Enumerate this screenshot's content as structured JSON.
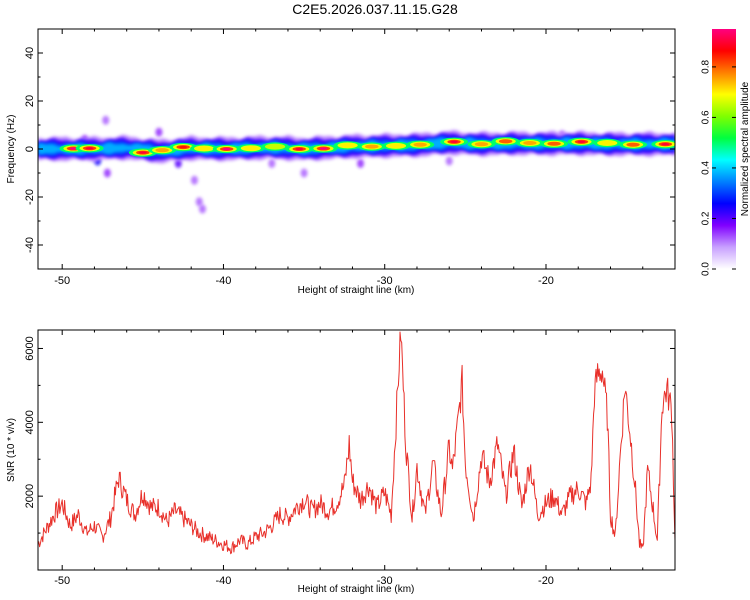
{
  "figure": {
    "title": "C2E5.2026.037.11.15.G28"
  },
  "chart_data": [
    {
      "type": "heatmap",
      "title": "",
      "xlabel": "Height of straight line (km)",
      "ylabel": "Frequency (Hz)",
      "xlim": [
        -51.5,
        -12.0
      ],
      "ylim": [
        -50,
        50
      ],
      "x_ticks": [
        -50,
        -40,
        -30,
        -20
      ],
      "x_tick_labels": [
        "-50",
        "-40",
        "-30",
        "-20"
      ],
      "y_ticks": [
        -40,
        -20,
        0,
        20,
        40
      ],
      "y_tick_labels": [
        "-40",
        "-20",
        "0",
        "20",
        "40"
      ],
      "colorbar": {
        "label": "Normalized spectral amplitude",
        "range": [
          0,
          0.95
        ],
        "ticks": [
          0,
          0.2,
          0.4,
          0.6,
          0.8
        ],
        "tick_labels": [
          "0.0",
          "0.2",
          "0.4",
          "0.6",
          "0.8"
        ],
        "colormap": [
          "#ffffff",
          "#c8a0ff",
          "#8000ff",
          "#0000ff",
          "#0080ff",
          "#00ffff",
          "#00ff40",
          "#80ff00",
          "#ffff00",
          "#ff8000",
          "#ff0000",
          "#ff0080"
        ]
      },
      "ridge": {
        "x": [
          -51.5,
          -48,
          -46,
          -44,
          -42,
          -40,
          -37,
          -35,
          -32,
          -30,
          -28,
          -26,
          -24,
          -22,
          -20,
          -18,
          -16,
          -14,
          -12
        ],
        "frequency": [
          0,
          0,
          0.5,
          -1,
          0.3,
          0,
          0.6,
          0,
          1,
          1.3,
          1.6,
          2.6,
          2.0,
          2.3,
          2.2,
          2.3,
          2.0,
          2.0,
          2.0
        ]
      },
      "peaks": [
        {
          "x": -49.3,
          "f": 0.2,
          "a": 0.95
        },
        {
          "x": -48.3,
          "f": 0.3,
          "a": 0.9
        },
        {
          "x": -45.0,
          "f": -1.5,
          "a": 0.9
        },
        {
          "x": -43.8,
          "f": -0.5,
          "a": 0.75
        },
        {
          "x": -42.5,
          "f": 0.8,
          "a": 0.85
        },
        {
          "x": -41.2,
          "f": 0.2,
          "a": 0.7
        },
        {
          "x": -39.8,
          "f": 0.0,
          "a": 0.95
        },
        {
          "x": -38.3,
          "f": 0.3,
          "a": 0.7
        },
        {
          "x": -36.8,
          "f": 1.0,
          "a": 0.65
        },
        {
          "x": -35.3,
          "f": 0.0,
          "a": 0.9
        },
        {
          "x": -33.8,
          "f": 0.2,
          "a": 0.95
        },
        {
          "x": -32.3,
          "f": 1.5,
          "a": 0.7
        },
        {
          "x": -30.8,
          "f": 1.0,
          "a": 0.75
        },
        {
          "x": -29.3,
          "f": 1.3,
          "a": 0.7
        },
        {
          "x": -27.8,
          "f": 1.8,
          "a": 0.75
        },
        {
          "x": -25.7,
          "f": 3.0,
          "a": 0.9
        },
        {
          "x": -24.0,
          "f": 2.0,
          "a": 0.75
        },
        {
          "x": -22.5,
          "f": 3.2,
          "a": 0.8
        },
        {
          "x": -21.0,
          "f": 2.5,
          "a": 0.75
        },
        {
          "x": -19.5,
          "f": 2.2,
          "a": 0.8
        },
        {
          "x": -17.8,
          "f": 3.0,
          "a": 0.9
        },
        {
          "x": -16.2,
          "f": 2.5,
          "a": 0.7
        },
        {
          "x": -14.6,
          "f": 1.8,
          "a": 0.8
        },
        {
          "x": -12.6,
          "f": 2.0,
          "a": 0.9
        }
      ],
      "blobs": [
        {
          "x": -47.3,
          "f": 12.0,
          "a": 0.12
        },
        {
          "x": -47.8,
          "f": -5.0,
          "a": 0.25
        },
        {
          "x": -47.2,
          "f": -10.0,
          "a": 0.15
        },
        {
          "x": -48.6,
          "f": 4.0,
          "a": 0.15
        },
        {
          "x": -44.0,
          "f": 7.0,
          "a": 0.15
        },
        {
          "x": -42.8,
          "f": -6.0,
          "a": 0.2
        },
        {
          "x": -41.5,
          "f": -22.0,
          "a": 0.12
        },
        {
          "x": -41.3,
          "f": -25.0,
          "a": 0.12
        },
        {
          "x": -41.8,
          "f": -13.0,
          "a": 0.12
        },
        {
          "x": -37.0,
          "f": -6.0,
          "a": 0.12
        },
        {
          "x": -35.0,
          "f": -10.0,
          "a": 0.12
        },
        {
          "x": -31.5,
          "f": -6.0,
          "a": 0.15
        },
        {
          "x": -26.0,
          "f": -5.0,
          "a": 0.12
        },
        {
          "x": -19.0,
          "f": 6.0,
          "a": 0.12
        }
      ]
    },
    {
      "type": "line",
      "title": "",
      "xlabel": "Height of straight line (km)",
      "ylabel": "SNR (10 * v/v)",
      "xlim": [
        -51.5,
        -12.0
      ],
      "ylim": [
        0,
        6500
      ],
      "x_ticks": [
        -50,
        -40,
        -30,
        -20
      ],
      "x_tick_labels": [
        "-50",
        "-40",
        "-30",
        "-20"
      ],
      "y_ticks": [
        2000,
        4000,
        6000
      ],
      "y_tick_labels": [
        "2000",
        "4000",
        "6000"
      ],
      "series": [
        {
          "color": "#e8302a",
          "x": [
            -51.5,
            -51.0,
            -50.5,
            -50.0,
            -49.5,
            -49.0,
            -48.5,
            -48.0,
            -47.5,
            -47.0,
            -46.5,
            -46.0,
            -45.5,
            -45.0,
            -44.5,
            -44.0,
            -43.5,
            -43.0,
            -42.5,
            -42.0,
            -41.5,
            -41.0,
            -40.5,
            -40.0,
            -39.5,
            -39.0,
            -38.5,
            -38.0,
            -37.5,
            -37.0,
            -36.5,
            -36.0,
            -35.5,
            -35.0,
            -34.5,
            -34.0,
            -33.5,
            -33.0,
            -32.5,
            -32.2,
            -32.0,
            -31.5,
            -31.0,
            -30.5,
            -30.0,
            -29.6,
            -29.3,
            -29.0,
            -28.7,
            -28.3,
            -28.0,
            -27.5,
            -27.0,
            -26.5,
            -26.0,
            -25.8,
            -25.5,
            -25.2,
            -25.0,
            -24.5,
            -24.0,
            -23.5,
            -23.0,
            -22.5,
            -22.0,
            -21.5,
            -21.0,
            -20.5,
            -20.0,
            -19.5,
            -19.0,
            -18.5,
            -18.0,
            -17.5,
            -17.2,
            -17.0,
            -16.8,
            -16.5,
            -16.2,
            -16.0,
            -15.7,
            -15.4,
            -15.1,
            -14.8,
            -14.5,
            -14.2,
            -14.0,
            -13.7,
            -13.4,
            -13.1,
            -12.8,
            -12.5,
            -12.2,
            -12.0
          ],
          "values": [
            700,
            1100,
            1500,
            1800,
            1200,
            1500,
            1000,
            1200,
            900,
            1400,
            2500,
            1900,
            1500,
            2100,
            1700,
            1700,
            1300,
            1600,
            1400,
            1200,
            1000,
            900,
            800,
            700,
            600,
            800,
            700,
            900,
            1000,
            1200,
            1500,
            1400,
            1700,
            1900,
            1600,
            1800,
            1600,
            1800,
            2300,
            3400,
            2400,
            1900,
            2300,
            1700,
            2100,
            1500,
            4000,
            6450,
            3500,
            1400,
            2800,
            1500,
            2900,
            1500,
            3300,
            2700,
            3800,
            5100,
            2900,
            1400,
            3100,
            2400,
            3400,
            2000,
            3200,
            1700,
            2900,
            1500,
            1800,
            2000,
            1500,
            2000,
            2200,
            1800,
            2400,
            4800,
            5300,
            5400,
            4200,
            1500,
            900,
            3100,
            5000,
            3800,
            2400,
            700,
            500,
            2700,
            1800,
            800,
            4500,
            4900,
            4300,
            800
          ]
        }
      ]
    }
  ]
}
